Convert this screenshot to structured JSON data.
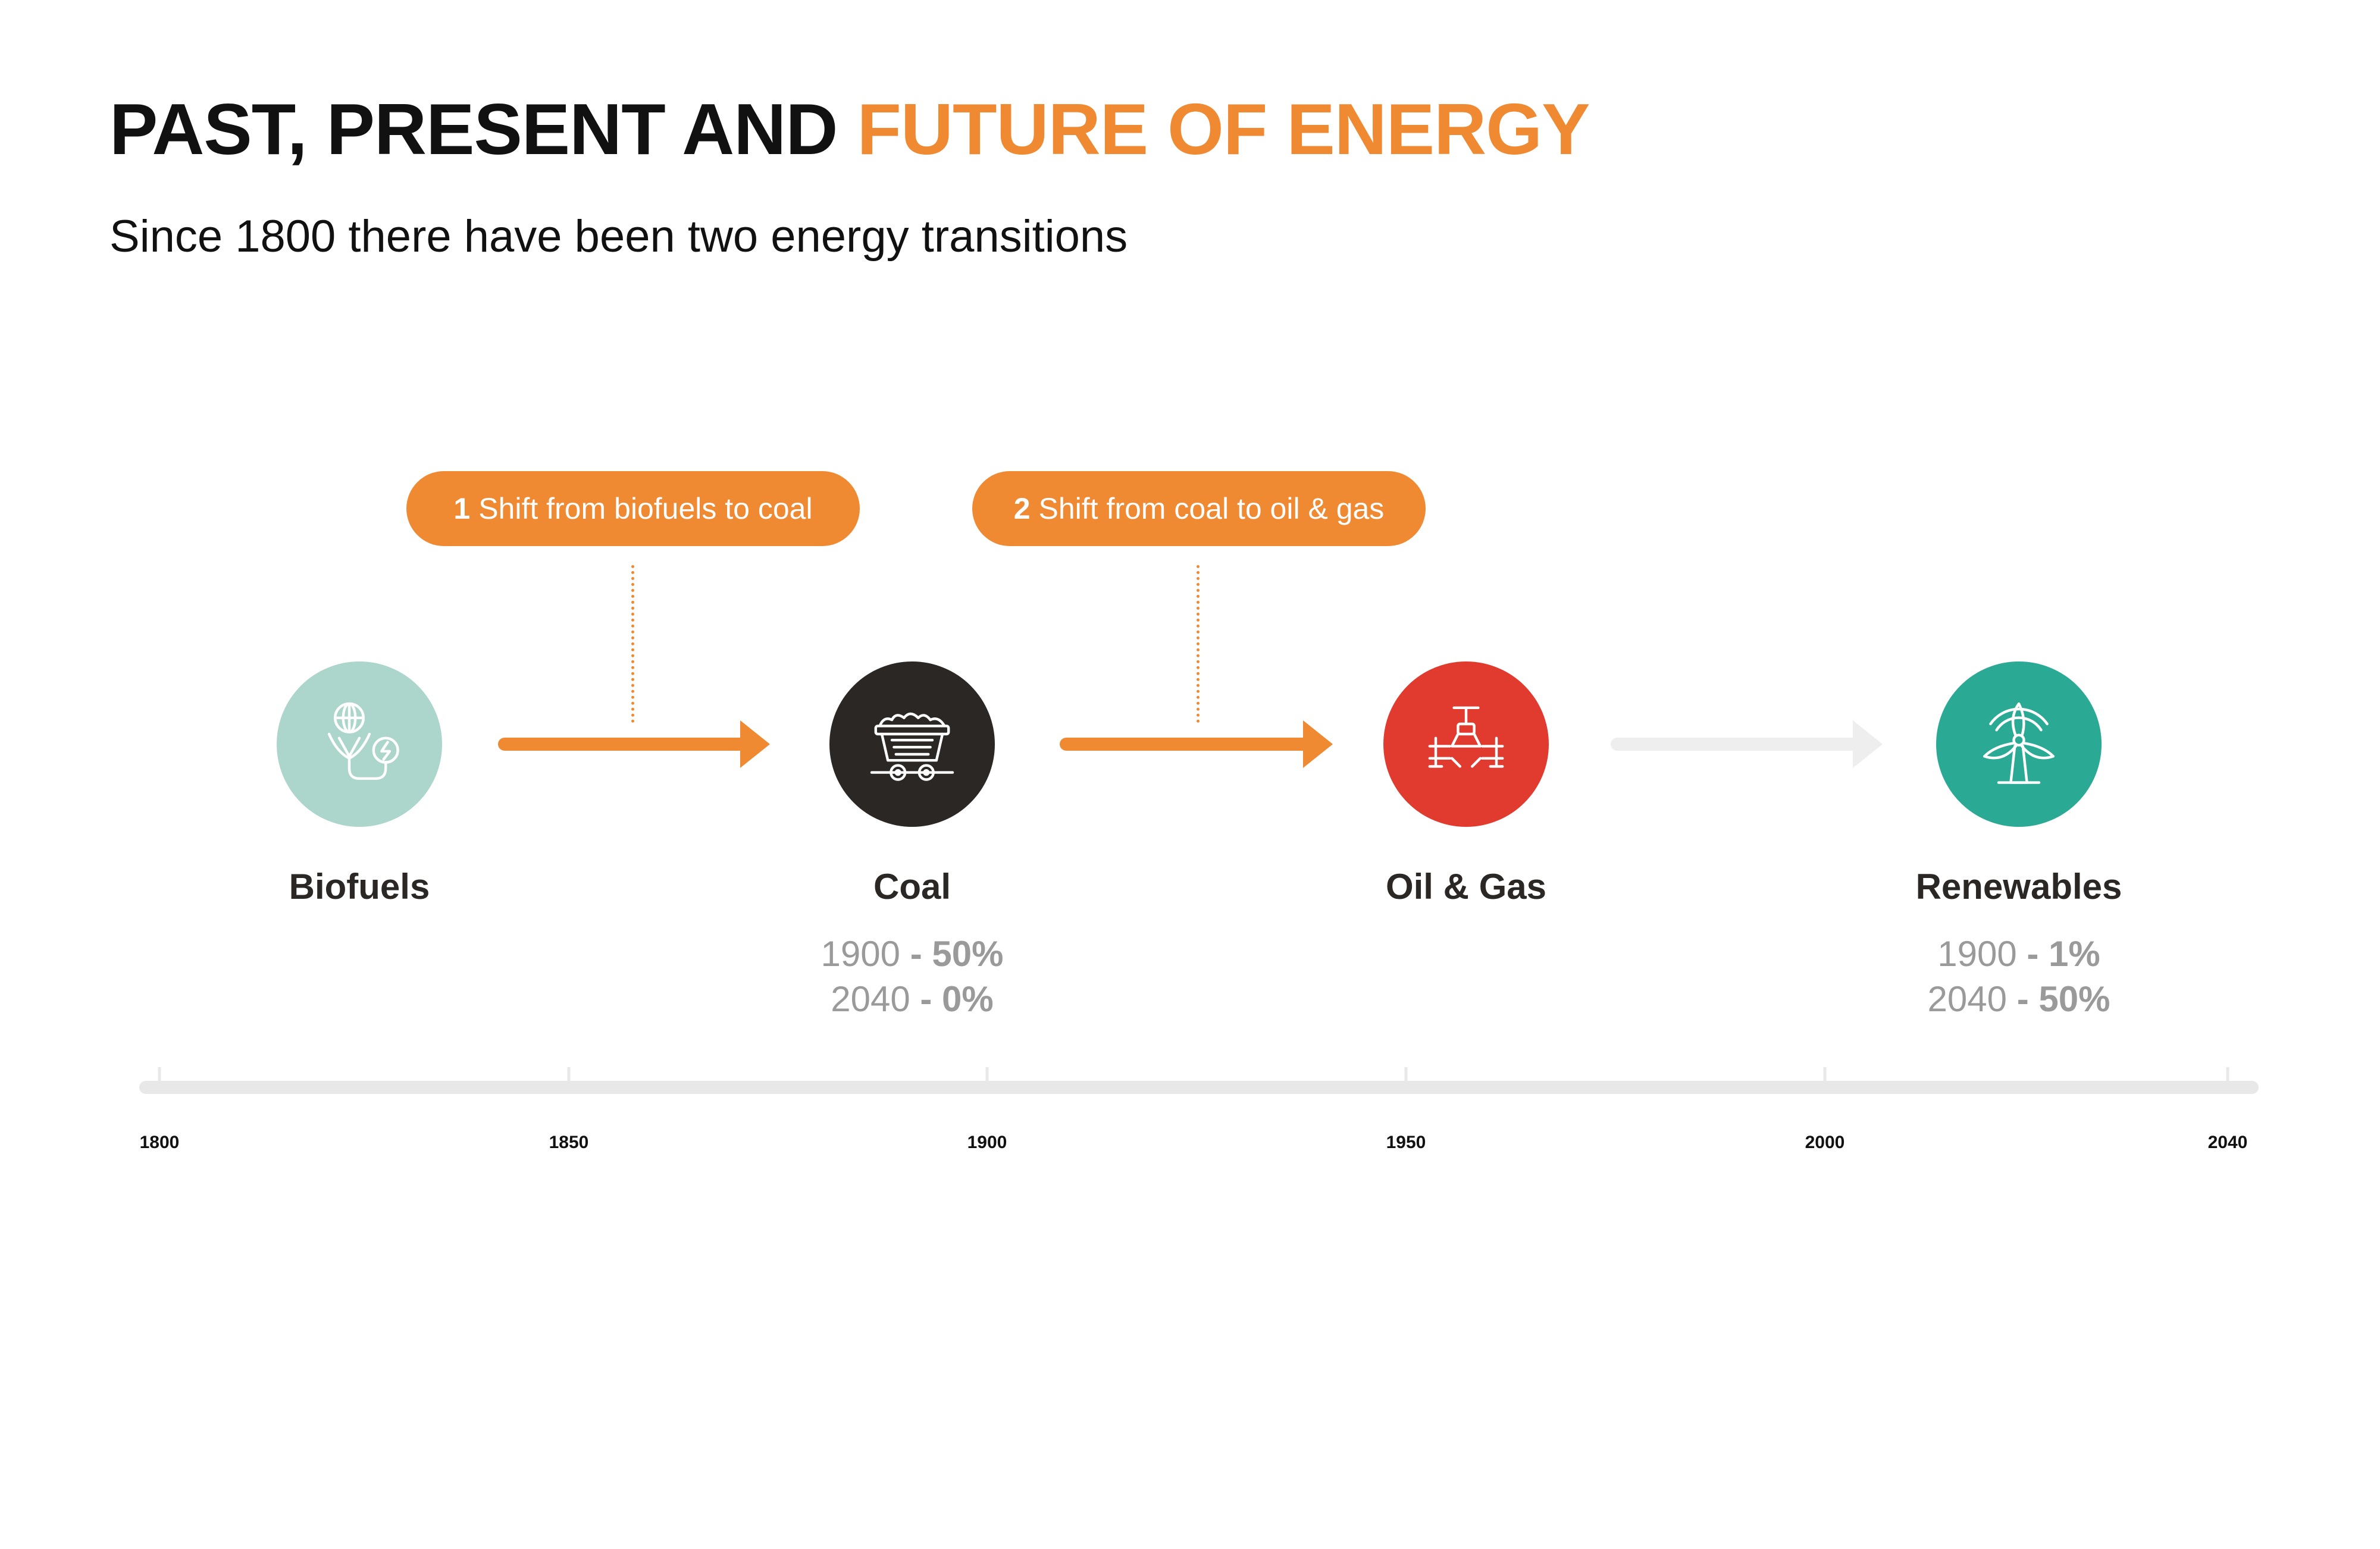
{
  "header": {
    "title_dark": "PAST, PRESENT AND ",
    "title_accent": "FUTURE OF ENERGY",
    "subtitle": "Since 1800 there have been two energy transitions"
  },
  "colors": {
    "accent": "#ef8a33",
    "biofuels": "#acd5cb",
    "coal": "#2b2725",
    "oil_gas": "#e13b30",
    "renewables": "#2aaa95",
    "timeline": "#e8e8e8"
  },
  "shifts": [
    {
      "number": "1",
      "text": "Shift from biofuels to coal"
    },
    {
      "number": "2",
      "text": "Shift from coal to oil & gas"
    }
  ],
  "sources": [
    {
      "name": "Biofuels",
      "icon": "biofuel-globe-plant-icon"
    },
    {
      "name": "Coal",
      "icon": "coal-cart-icon",
      "stats": [
        {
          "year": "1900",
          "sep": " - ",
          "value": "50%"
        },
        {
          "year": "2040",
          "sep": " - ",
          "value": "0%"
        }
      ]
    },
    {
      "name": "Oil & Gas",
      "icon": "pipeline-valve-icon"
    },
    {
      "name": "Renewables",
      "icon": "wind-turbine-icon",
      "stats": [
        {
          "year": "1900",
          "sep": " - ",
          "value": "1%"
        },
        {
          "year": "2040",
          "sep": " - ",
          "value": "50%"
        }
      ]
    }
  ],
  "timeline": {
    "ticks": [
      "1800",
      "1850",
      "1900",
      "1950",
      "2000",
      "2040"
    ]
  }
}
